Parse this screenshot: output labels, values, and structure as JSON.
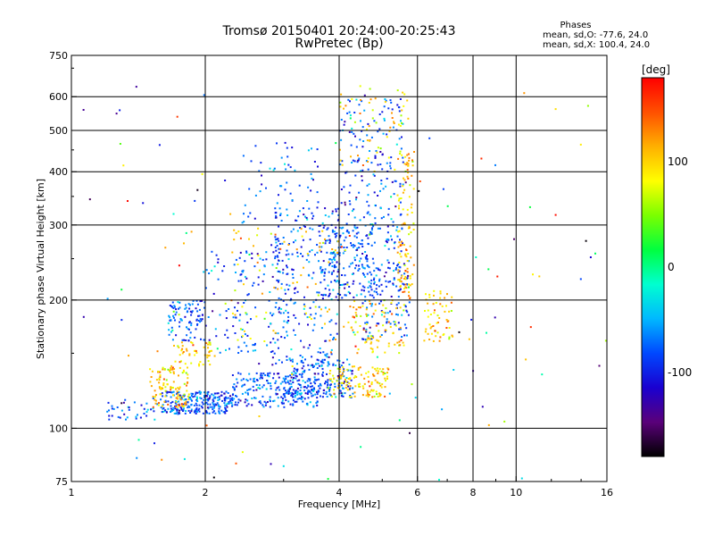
{
  "chart_data": {
    "type": "scatter",
    "title": "Tromsø 20150401 20:24:00-20:25:43",
    "subtitle": "RwPretec (Bp)",
    "xlabel": "Frequency [MHz]",
    "ylabel": "Stationary phase Virtual Height [km]",
    "x_scale": "log",
    "y_scale": "log",
    "xlim": [
      1,
      16
    ],
    "ylim": [
      75,
      750
    ],
    "x_ticks": [
      1,
      2,
      4,
      6,
      8,
      10,
      16
    ],
    "x_tick_labels": [
      "1",
      "2",
      "4",
      "6",
      "8",
      "10",
      "16"
    ],
    "y_ticks": [
      75,
      100,
      200,
      300,
      400,
      500,
      600,
      750
    ],
    "y_tick_labels": [
      "75",
      "100",
      "200",
      "300",
      "400",
      "500",
      "600",
      "750"
    ],
    "x_gridlines": [
      2,
      4,
      6,
      8,
      10
    ],
    "y_gridlines": [
      100,
      200,
      300,
      400,
      500,
      600
    ],
    "grid": true,
    "colorbar": {
      "label": "[deg]",
      "range": [
        -180,
        180
      ],
      "ticks": [
        100,
        0,
        -100
      ],
      "tick_labels": [
        "100",
        "0",
        "-100"
      ],
      "colors": [
        "#000000",
        "#5a007a",
        "#1a00d0",
        "#0048ff",
        "#00b8ff",
        "#00ffd0",
        "#00ff40",
        "#7aff00",
        "#ffff00",
        "#ffb000",
        "#ff5000",
        "#ff0000"
      ]
    },
    "phases_box": {
      "heading": "Phases",
      "line_o": "mean, sd,O: -77.6, 24.0",
      "line_x": "mean, sd,X: 100.4, 24.0"
    },
    "series": [
      {
        "phase_mean": -77.6,
        "phase_sd": 24.0,
        "clusters": [
          {
            "f": [
              1.6,
              2.3
            ],
            "h": [
              108,
              122
            ],
            "n": 240
          },
          {
            "f": [
              2.3,
              3.6
            ],
            "h": [
              112,
              135
            ],
            "n": 220
          },
          {
            "f": [
              3.0,
              4.3
            ],
            "h": [
              118,
              145
            ],
            "n": 200
          },
          {
            "f": [
              1.65,
              2.0
            ],
            "h": [
              160,
              200
            ],
            "n": 90
          },
          {
            "f": [
              2.0,
              3.2
            ],
            "h": [
              150,
              260
            ],
            "n": 150
          },
          {
            "f": [
              2.8,
              4.0
            ],
            "h": [
              140,
              330
            ],
            "n": 210
          },
          {
            "f": [
              3.6,
              4.8
            ],
            "h": [
              200,
              300
            ],
            "n": 170
          },
          {
            "f": [
              4.0,
              5.6
            ],
            "h": [
              260,
              600
            ],
            "n": 200
          },
          {
            "f": [
              4.5,
              5.8
            ],
            "h": [
              160,
              250
            ],
            "n": 130
          },
          {
            "f": [
              2.4,
              3.6
            ],
            "h": [
              300,
              470
            ],
            "n": 70
          },
          {
            "f": [
              1.2,
              1.6
            ],
            "h": [
              104,
              118
            ],
            "n": 40
          }
        ]
      },
      {
        "phase_mean": 100.4,
        "phase_sd": 24.0,
        "clusters": [
          {
            "f": [
              1.5,
              1.85
            ],
            "h": [
              112,
              140
            ],
            "n": 110
          },
          {
            "f": [
              1.7,
              2.1
            ],
            "h": [
              140,
              160
            ],
            "n": 50
          },
          {
            "f": [
              3.8,
              5.2
            ],
            "h": [
              118,
              140
            ],
            "n": 120
          },
          {
            "f": [
              4.2,
              5.6
            ],
            "h": [
              150,
              200
            ],
            "n": 90
          },
          {
            "f": [
              5.4,
              5.9
            ],
            "h": [
              200,
              450
            ],
            "n": 110
          },
          {
            "f": [
              6.2,
              7.2
            ],
            "h": [
              160,
              210
            ],
            "n": 60
          },
          {
            "f": [
              2.2,
              4.2
            ],
            "h": [
              160,
              300
            ],
            "n": 80
          },
          {
            "f": [
              4.0,
              5.8
            ],
            "h": [
              400,
              640
            ],
            "n": 60
          }
        ]
      }
    ],
    "scattered": [
      {
        "f": [
          1.0,
          16.0
        ],
        "h": [
          75,
          650
        ],
        "n": 130
      }
    ]
  }
}
